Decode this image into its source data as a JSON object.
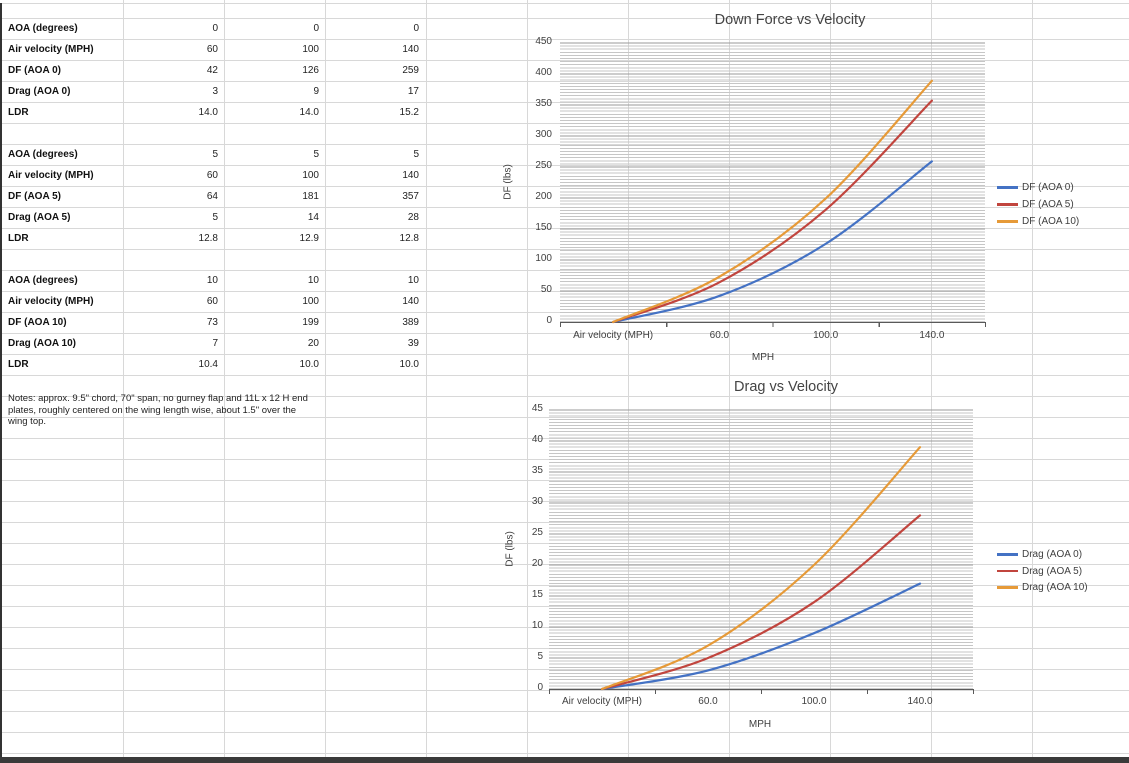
{
  "table": {
    "blocks": [
      {
        "rows": [
          {
            "label": "AOA (degrees)",
            "values": [
              "0",
              "0",
              "0"
            ]
          },
          {
            "label": "Air velocity (MPH)",
            "values": [
              "60",
              "100",
              "140"
            ]
          },
          {
            "label": "DF (AOA 0)",
            "values": [
              "42",
              "126",
              "259"
            ]
          },
          {
            "label": "Drag (AOA 0)",
            "values": [
              "3",
              "9",
              "17"
            ]
          },
          {
            "label": "LDR",
            "values": [
              "14.0",
              "14.0",
              "15.2"
            ]
          }
        ]
      },
      {
        "rows": [
          {
            "label": "AOA (degrees)",
            "values": [
              "5",
              "5",
              "5"
            ]
          },
          {
            "label": "Air velocity (MPH)",
            "values": [
              "60",
              "100",
              "140"
            ]
          },
          {
            "label": "DF (AOA 5)",
            "values": [
              "64",
              "181",
              "357"
            ]
          },
          {
            "label": "Drag (AOA 5)",
            "values": [
              "5",
              "14",
              "28"
            ]
          },
          {
            "label": "LDR",
            "values": [
              "12.8",
              "12.9",
              "12.8"
            ]
          }
        ]
      },
      {
        "rows": [
          {
            "label": "AOA (degrees)",
            "values": [
              "10",
              "10",
              "10"
            ]
          },
          {
            "label": "Air velocity (MPH)",
            "values": [
              "60",
              "100",
              "140"
            ]
          },
          {
            "label": "DF (AOA 10)",
            "values": [
              "73",
              "199",
              "389"
            ]
          },
          {
            "label": "Drag (AOA 10)",
            "values": [
              "7",
              "20",
              "39"
            ]
          },
          {
            "label": "LDR",
            "values": [
              "10.4",
              "10.0",
              "10.0"
            ]
          }
        ]
      }
    ]
  },
  "notes": "Notes: approx. 9.5\" chord, 70\" span, no gurney flap and 11L x 12 H end plates, roughly centered on the wing length wise, about 1.5\" over the wing top.",
  "chart_data": [
    {
      "type": "line",
      "title": "Down Force vs Velocity",
      "categories": [
        "Air velocity (MPH)",
        "60.0",
        "100.0",
        "140.0"
      ],
      "series": [
        {
          "name": "DF (AOA 0)",
          "color": "#4472C4",
          "values": [
            0,
            42,
            126,
            259
          ]
        },
        {
          "name": "DF (AOA 5)",
          "color": "#C1453E",
          "values": [
            0,
            64,
            181,
            357
          ]
        },
        {
          "name": "DF (AOA 10)",
          "color": "#E69A38",
          "values": [
            0,
            73,
            199,
            389
          ]
        }
      ],
      "xlabel": "MPH",
      "ylabel": "DF (lbs)",
      "ylim": [
        0,
        450
      ],
      "ytick": 50,
      "yminor": 5,
      "legend_position": "right",
      "grid": "horizontal-minor",
      "smooth": true
    },
    {
      "type": "line",
      "title": "Drag vs Velocity",
      "categories": [
        "Air velocity (MPH)",
        "60.0",
        "100.0",
        "140.0"
      ],
      "series": [
        {
          "name": "Drag (AOA 0)",
          "color": "#4472C4",
          "values": [
            0,
            3,
            9,
            17
          ]
        },
        {
          "name": "Drag (AOA 5)",
          "color": "#C1453E",
          "values": [
            0,
            5,
            14,
            28
          ]
        },
        {
          "name": "Drag (AOA 10)",
          "color": "#E69A38",
          "values": [
            0,
            7,
            20,
            39
          ]
        }
      ],
      "xlabel": "MPH",
      "ylabel": "DF (lbs)",
      "ylim": [
        0,
        45
      ],
      "ytick": 5,
      "yminor": 0.5,
      "legend_position": "right",
      "grid": "horizontal-minor",
      "smooth": true
    }
  ],
  "theme": {
    "sheet_gridline_color": "#d8d8d8",
    "chart_minor_gridline_color": "#c6c6c6",
    "chart_major_gridline_color": "#9a9a9a",
    "axis_color": "#595959",
    "chart_text_color": "#3f3f3f",
    "window_edge_color": "#333333"
  }
}
